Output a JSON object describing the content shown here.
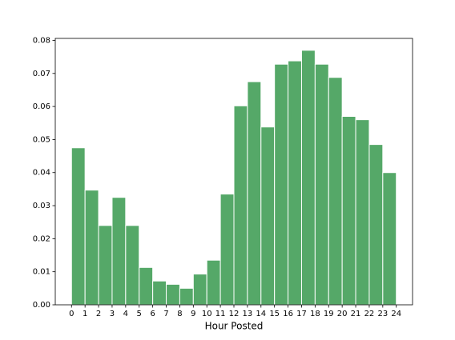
{
  "chart_data": {
    "type": "histogram",
    "xlabel": "Hour Posted",
    "bins": [
      0,
      1,
      2,
      3,
      4,
      5,
      6,
      7,
      8,
      9,
      10,
      11,
      12,
      13,
      14,
      15,
      16,
      17,
      18,
      19,
      20,
      21,
      22,
      23,
      24
    ],
    "counts": [
      0.0475,
      0.0347,
      0.024,
      0.0325,
      0.024,
      0.0113,
      0.0072,
      0.0062,
      0.005,
      0.0093,
      0.0135,
      0.0335,
      0.0602,
      0.0675,
      0.0538,
      0.0728,
      0.0738,
      0.077,
      0.0728,
      0.0688,
      0.057,
      0.056,
      0.0485,
      0.04
    ],
    "color": "#55a868",
    "xlim": [
      -1.2,
      25.2
    ],
    "ylim": [
      0,
      0.0806
    ],
    "xticks": [
      0,
      1,
      2,
      3,
      4,
      5,
      6,
      7,
      8,
      9,
      10,
      11,
      12,
      13,
      14,
      15,
      16,
      17,
      18,
      19,
      20,
      21,
      22,
      23,
      24
    ],
    "yticks": [
      {
        "value": 0,
        "label": "0.00"
      },
      {
        "value": 0.01,
        "label": "0.01"
      },
      {
        "value": 0.02,
        "label": "0.02"
      },
      {
        "value": 0.03,
        "label": "0.03"
      },
      {
        "value": 0.04,
        "label": "0.04"
      },
      {
        "value": 0.05,
        "label": "0.05"
      },
      {
        "value": 0.06,
        "label": "0.06"
      },
      {
        "value": 0.07,
        "label": "0.07"
      },
      {
        "value": 0.08,
        "label": "0.08"
      }
    ]
  }
}
